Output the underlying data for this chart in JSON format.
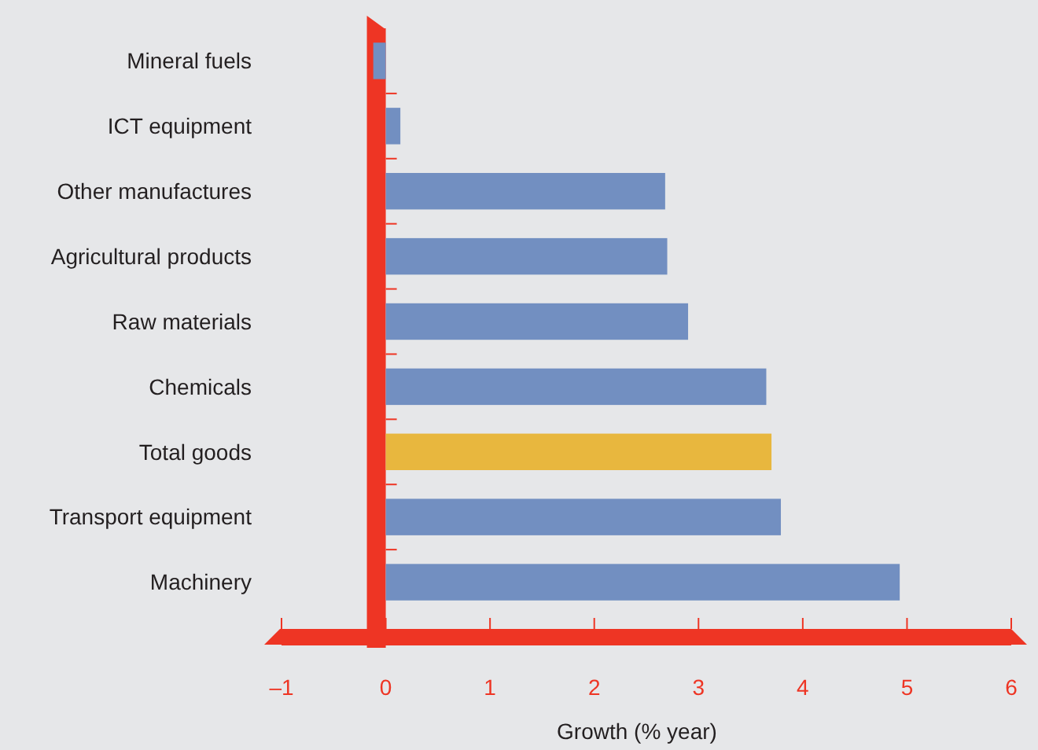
{
  "chart_data": {
    "type": "bar",
    "orientation": "horizontal",
    "xlabel": "Growth (% year)",
    "categories": [
      "Mineral fuels",
      "ICT equipment",
      "Other manufactures",
      "Agricultural products",
      "Raw materials",
      "Chemicals",
      "Total goods",
      "Transport equipment",
      "Machinery"
    ],
    "values": [
      -0.12,
      0.14,
      2.68,
      2.7,
      2.9,
      3.65,
      3.7,
      3.79,
      4.93
    ],
    "colors": [
      "#728fc1",
      "#728fc1",
      "#728fc1",
      "#728fc1",
      "#728fc1",
      "#728fc1",
      "#e8b73e",
      "#728fc1",
      "#728fc1"
    ],
    "xlim": [
      -1,
      6
    ],
    "xticks": [
      {
        "value": -1,
        "label": "–1"
      },
      0,
      1,
      2,
      3,
      4,
      5,
      6
    ]
  }
}
